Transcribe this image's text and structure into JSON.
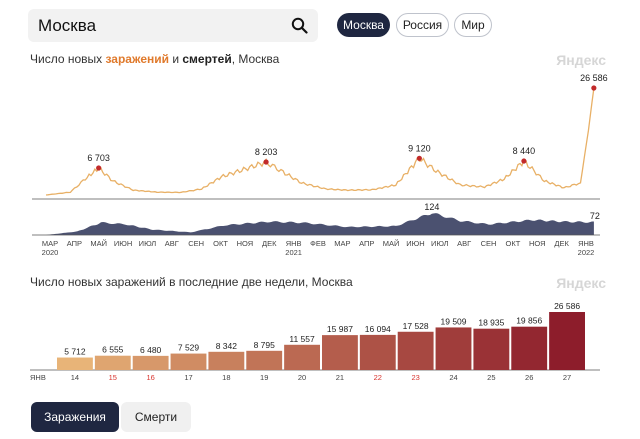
{
  "search": {
    "value": "Москва"
  },
  "region_chips": [
    {
      "label": "Москва",
      "active": true
    },
    {
      "label": "Россия",
      "active": false
    },
    {
      "label": "Мир",
      "active": false
    }
  ],
  "brand": "Яндекс",
  "top_chart": {
    "title_prefix": "Число новых ",
    "title_cases": "заражений",
    "title_and": " и ",
    "title_deaths": "смертей",
    "title_suffix": ", Москва",
    "accent_color": "#e8b066",
    "peak_color": "#c22a2a",
    "deaths_color": "#4b5170",
    "month_labels": [
      "МАР",
      "АПР",
      "МАЙ",
      "ИЮН",
      "ИЮЛ",
      "АВГ",
      "СЕН",
      "ОКТ",
      "НОЯ",
      "ДЕК",
      "ЯНВ",
      "ФЕВ",
      "МАР",
      "АПР",
      "МАЙ",
      "ИЮН",
      "ИЮЛ",
      "АВГ",
      "СЕН",
      "ОКТ",
      "НОЯ",
      "ДЕК",
      "ЯНВ"
    ],
    "year_labels": [
      {
        "label": "2020",
        "month_index": 0
      },
      {
        "label": "2021",
        "month_index": 10
      },
      {
        "label": "2022",
        "month_index": 22
      }
    ]
  },
  "bottom_chart": {
    "title": "Число новых заражений в последние две недели, Москва",
    "month_label": "ЯНВ",
    "weekend_color": "#d9352f"
  },
  "tabs": [
    {
      "label": "Заражения",
      "active": true
    },
    {
      "label": "Смерти",
      "active": false
    }
  ],
  "chart_data": [
    {
      "type": "line",
      "title": "Число новых заражений и смертей, Москва",
      "series": [
        {
          "name": "заражений",
          "points": [
            {
              "x": "2020-03-01",
              "y": 0
            },
            {
              "x": "2020-04-01",
              "y": 700
            },
            {
              "x": "2020-04-20",
              "y": 4000
            },
            {
              "x": "2020-05-07",
              "y": 6703
            },
            {
              "x": "2020-05-25",
              "y": 3500
            },
            {
              "x": "2020-06-20",
              "y": 1200
            },
            {
              "x": "2020-07-20",
              "y": 700
            },
            {
              "x": "2020-08-20",
              "y": 650
            },
            {
              "x": "2020-09-15",
              "y": 1500
            },
            {
              "x": "2020-10-10",
              "y": 4500
            },
            {
              "x": "2020-11-10",
              "y": 6500
            },
            {
              "x": "2020-12-06",
              "y": 8203
            },
            {
              "x": "2020-12-25",
              "y": 6000
            },
            {
              "x": "2021-01-20",
              "y": 3000
            },
            {
              "x": "2021-02-20",
              "y": 1500
            },
            {
              "x": "2021-03-20",
              "y": 1200
            },
            {
              "x": "2021-04-20",
              "y": 1300
            },
            {
              "x": "2021-05-20",
              "y": 2500
            },
            {
              "x": "2021-06-19",
              "y": 9120
            },
            {
              "x": "2021-07-10",
              "y": 6000
            },
            {
              "x": "2021-08-10",
              "y": 2500
            },
            {
              "x": "2021-09-10",
              "y": 2000
            },
            {
              "x": "2021-10-05",
              "y": 4000
            },
            {
              "x": "2021-10-30",
              "y": 8440
            },
            {
              "x": "2021-11-25",
              "y": 3500
            },
            {
              "x": "2021-12-20",
              "y": 1800
            },
            {
              "x": "2022-01-10",
              "y": 3000
            },
            {
              "x": "2022-01-20",
              "y": 15987
            },
            {
              "x": "2022-01-27",
              "y": 26586
            }
          ],
          "peak_labels": [
            {
              "x": "2020-05-07",
              "y": 6703,
              "label": "6 703"
            },
            {
              "x": "2020-12-06",
              "y": 8203,
              "label": "8 203"
            },
            {
              "x": "2021-06-19",
              "y": 9120,
              "label": "9 120"
            },
            {
              "x": "2021-10-30",
              "y": 8440,
              "label": "8 440"
            },
            {
              "x": "2022-01-27",
              "y": 26586,
              "label": "26 586"
            }
          ]
        },
        {
          "name": "смертей",
          "points": [
            {
              "x": "2020-03-01",
              "y": 0
            },
            {
              "x": "2020-04-10",
              "y": 20
            },
            {
              "x": "2020-05-10",
              "y": 70
            },
            {
              "x": "2020-06-10",
              "y": 60
            },
            {
              "x": "2020-07-15",
              "y": 30
            },
            {
              "x": "2020-09-01",
              "y": 15
            },
            {
              "x": "2020-10-15",
              "y": 55
            },
            {
              "x": "2020-12-10",
              "y": 75
            },
            {
              "x": "2021-01-20",
              "y": 70
            },
            {
              "x": "2021-03-20",
              "y": 45
            },
            {
              "x": "2021-05-20",
              "y": 50
            },
            {
              "x": "2021-07-05",
              "y": 124
            },
            {
              "x": "2021-08-10",
              "y": 80
            },
            {
              "x": "2021-09-15",
              "y": 60
            },
            {
              "x": "2021-11-10",
              "y": 85
            },
            {
              "x": "2021-12-20",
              "y": 75
            },
            {
              "x": "2022-01-27",
              "y": 72
            }
          ],
          "peak_labels": [
            {
              "x": "2021-07-05",
              "y": 124,
              "label": "124"
            },
            {
              "x": "2022-01-27",
              "y": 72,
              "label": "72"
            }
          ]
        }
      ],
      "x_range": [
        "2020-03-01",
        "2022-01-31"
      ]
    },
    {
      "type": "bar",
      "title": "Число новых заражений в последние две недели, Москва",
      "categories": [
        "14",
        "15",
        "16",
        "17",
        "18",
        "19",
        "20",
        "21",
        "22",
        "23",
        "24",
        "25",
        "26",
        "27"
      ],
      "values": [
        5712,
        6555,
        6480,
        7529,
        8342,
        8795,
        11557,
        15987,
        16094,
        17528,
        19509,
        18935,
        19856,
        26586
      ],
      "value_labels": [
        "5 712",
        "6 555",
        "6 480",
        "7 529",
        "8 342",
        "8 795",
        "11 557",
        "15 987",
        "16 094",
        "17 528",
        "19 509",
        "18 935",
        "19 856",
        "26 586"
      ],
      "weekend_categories": [
        "15",
        "16",
        "22",
        "23"
      ],
      "ylim": [
        0,
        26586
      ]
    }
  ]
}
